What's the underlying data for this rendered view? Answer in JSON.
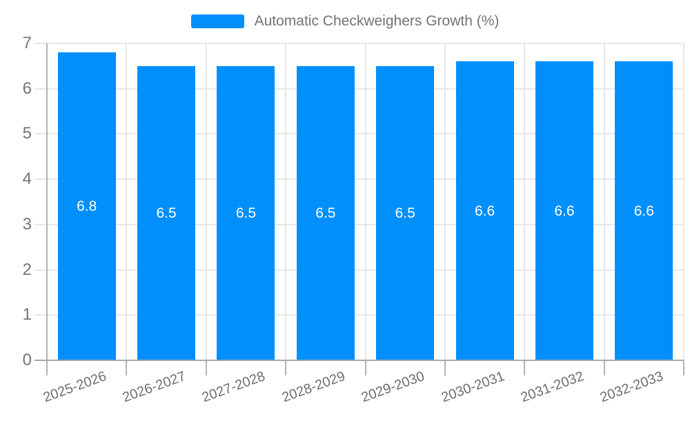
{
  "chart_data": {
    "type": "bar",
    "legend_label": "Automatic Checkweighers Growth (%)",
    "legend_position": "top",
    "categories": [
      "2025-2026",
      "2026-2027",
      "2027-2028",
      "2028-2029",
      "2029-2030",
      "2030-2031",
      "2031-2032",
      "2032-2033"
    ],
    "values": [
      6.8,
      6.5,
      6.5,
      6.5,
      6.5,
      6.6,
      6.6,
      6.6
    ],
    "data_labels": [
      "6.8",
      "6.5",
      "6.5",
      "6.5",
      "6.5",
      "6.6",
      "6.6",
      "6.6"
    ],
    "ylabel": "",
    "xlabel": "",
    "ylim": [
      0,
      7
    ],
    "yticks": [
      0,
      1,
      2,
      3,
      4,
      5,
      6,
      7
    ],
    "grid": true,
    "colors": {
      "bar": "#008FFB",
      "grid": "#E7E7E7",
      "axis": "#A6A6A6",
      "y_tick_text": "#757575",
      "x_tick_text": "#6E6E6E",
      "legend_text": "#737373",
      "value_label": "#FFFFFF"
    }
  }
}
